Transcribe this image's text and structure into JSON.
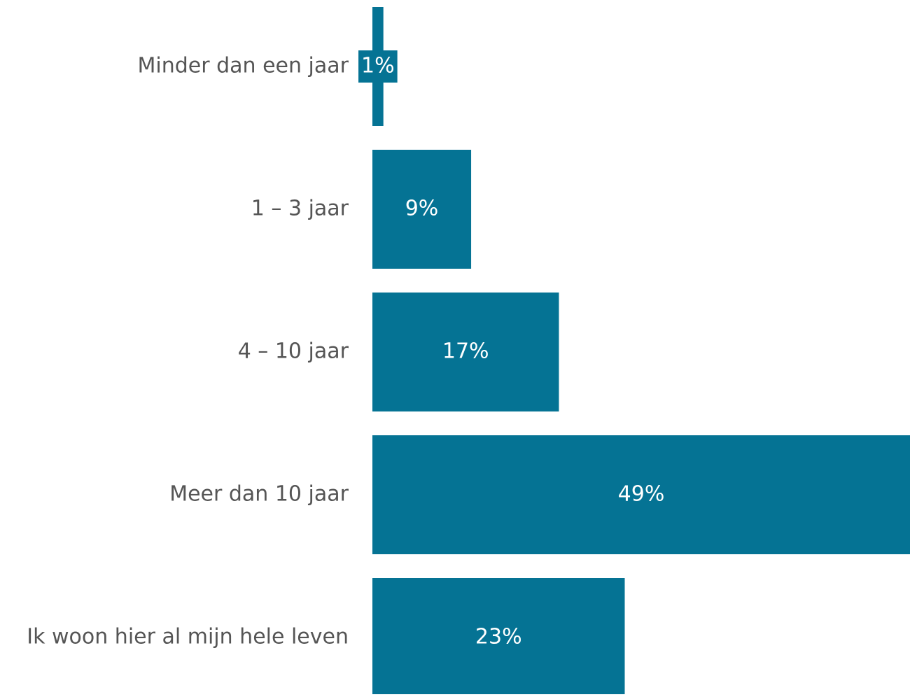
{
  "chart_data": {
    "type": "bar",
    "orientation": "horizontal",
    "categories": [
      "Minder dan een jaar",
      "1 – 3 jaar",
      "4 – 10 jaar",
      "Meer dan 10 jaar",
      "Ik woon hier al mijn hele leven"
    ],
    "values": [
      1,
      9,
      17,
      49,
      23
    ],
    "value_labels": [
      "1%",
      "9%",
      "17%",
      "49%",
      "23%"
    ],
    "color": "#057394"
  }
}
